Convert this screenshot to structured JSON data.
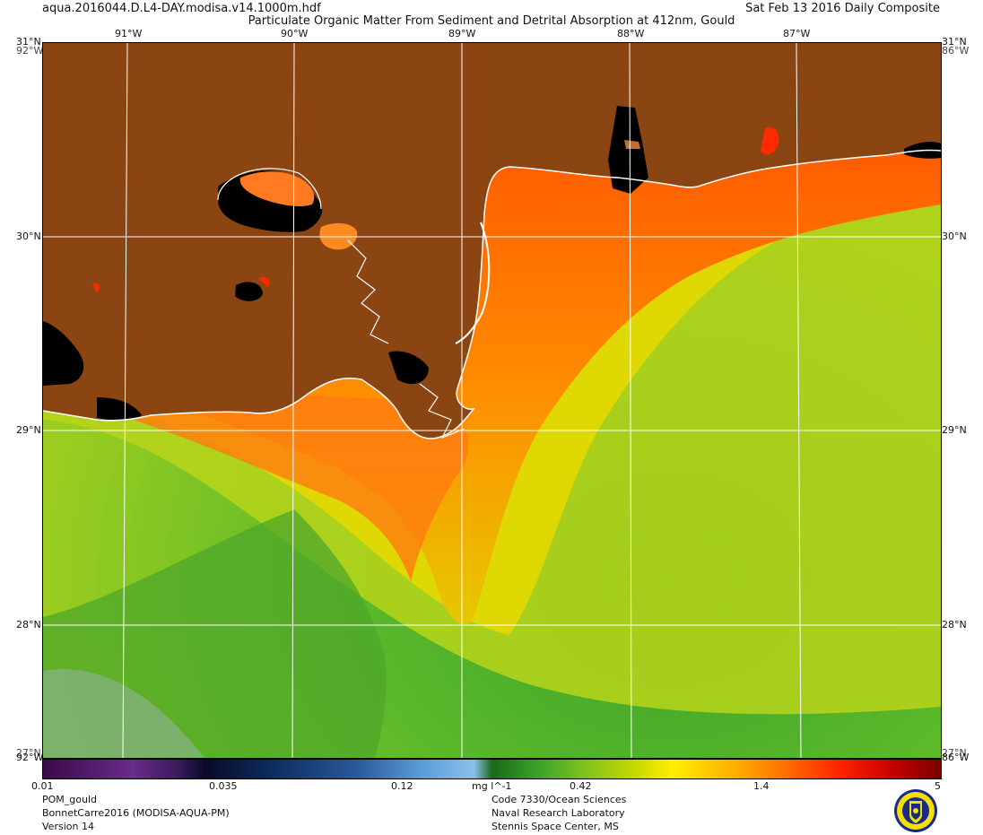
{
  "header": {
    "filename": "aqua.2016044.D.L4-DAY.modisa.v14.1000m.hdf",
    "title": "Particulate Organic Matter From Sediment and Detrital Absorption at 412nm, Gould",
    "date": "Sat Feb 13 2016 Daily Composite"
  },
  "map": {
    "lon_labels_top": [
      "91°W",
      "90°W",
      "89°W",
      "88°W",
      "87°W"
    ],
    "lat_labels": [
      "31°N",
      "30°N",
      "29°N",
      "28°N"
    ],
    "corner_labels": {
      "top_left": "31°N",
      "top_left_west": "92°W",
      "top_right": "31°N",
      "top_right_west": "86°W",
      "bottom_left": "27°N",
      "bottom_left_west": "92°W",
      "bottom_right": "27°N",
      "bottom_right_west": "86°W"
    },
    "colors": {
      "land": "#8b4513",
      "nodata": "#000000",
      "coast": "#ffffff"
    }
  },
  "colorbar": {
    "ticks": [
      "0.01",
      "0.035",
      "0.12",
      "0.42",
      "1.4",
      "5"
    ],
    "unit": "mg l^-1",
    "scale": "log"
  },
  "footer": {
    "left": [
      "POM_gould",
      "BonnetCarre2016 (MODISA-AQUA-PM)",
      "Version 14"
    ],
    "middle": [
      "Code 7330/Ocean Sciences",
      "Naval Research Laboratory",
      "Stennis Space Center, MS"
    ]
  }
}
